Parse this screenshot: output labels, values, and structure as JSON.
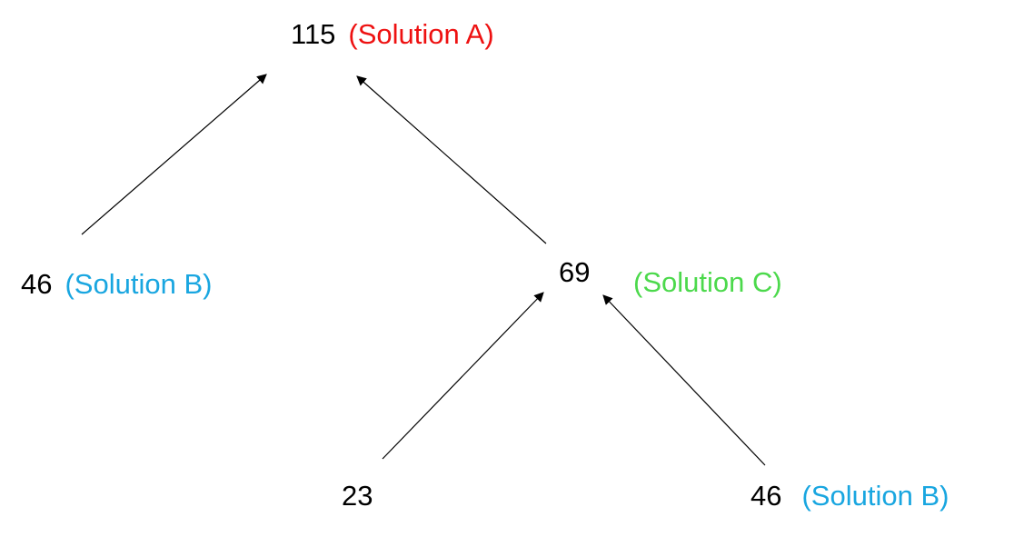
{
  "colors": {
    "solution_a": "#ee1111",
    "solution_b": "#19a6e0",
    "solution_c": "#4cd94c",
    "edge": "#000000"
  },
  "nodes": {
    "root": {
      "value": "115",
      "label": "(Solution A)"
    },
    "left": {
      "value": "46",
      "label": "(Solution B)"
    },
    "middle": {
      "value": "69",
      "label": "(Solution C)"
    },
    "bottom_left": {
      "value": "23"
    },
    "bottom_right": {
      "value": "46",
      "label": "(Solution B)"
    }
  },
  "edges": [
    {
      "from": "left",
      "to": "root"
    },
    {
      "from": "middle",
      "to": "root"
    },
    {
      "from": "bottom_left",
      "to": "middle"
    },
    {
      "from": "bottom_right",
      "to": "middle"
    }
  ]
}
